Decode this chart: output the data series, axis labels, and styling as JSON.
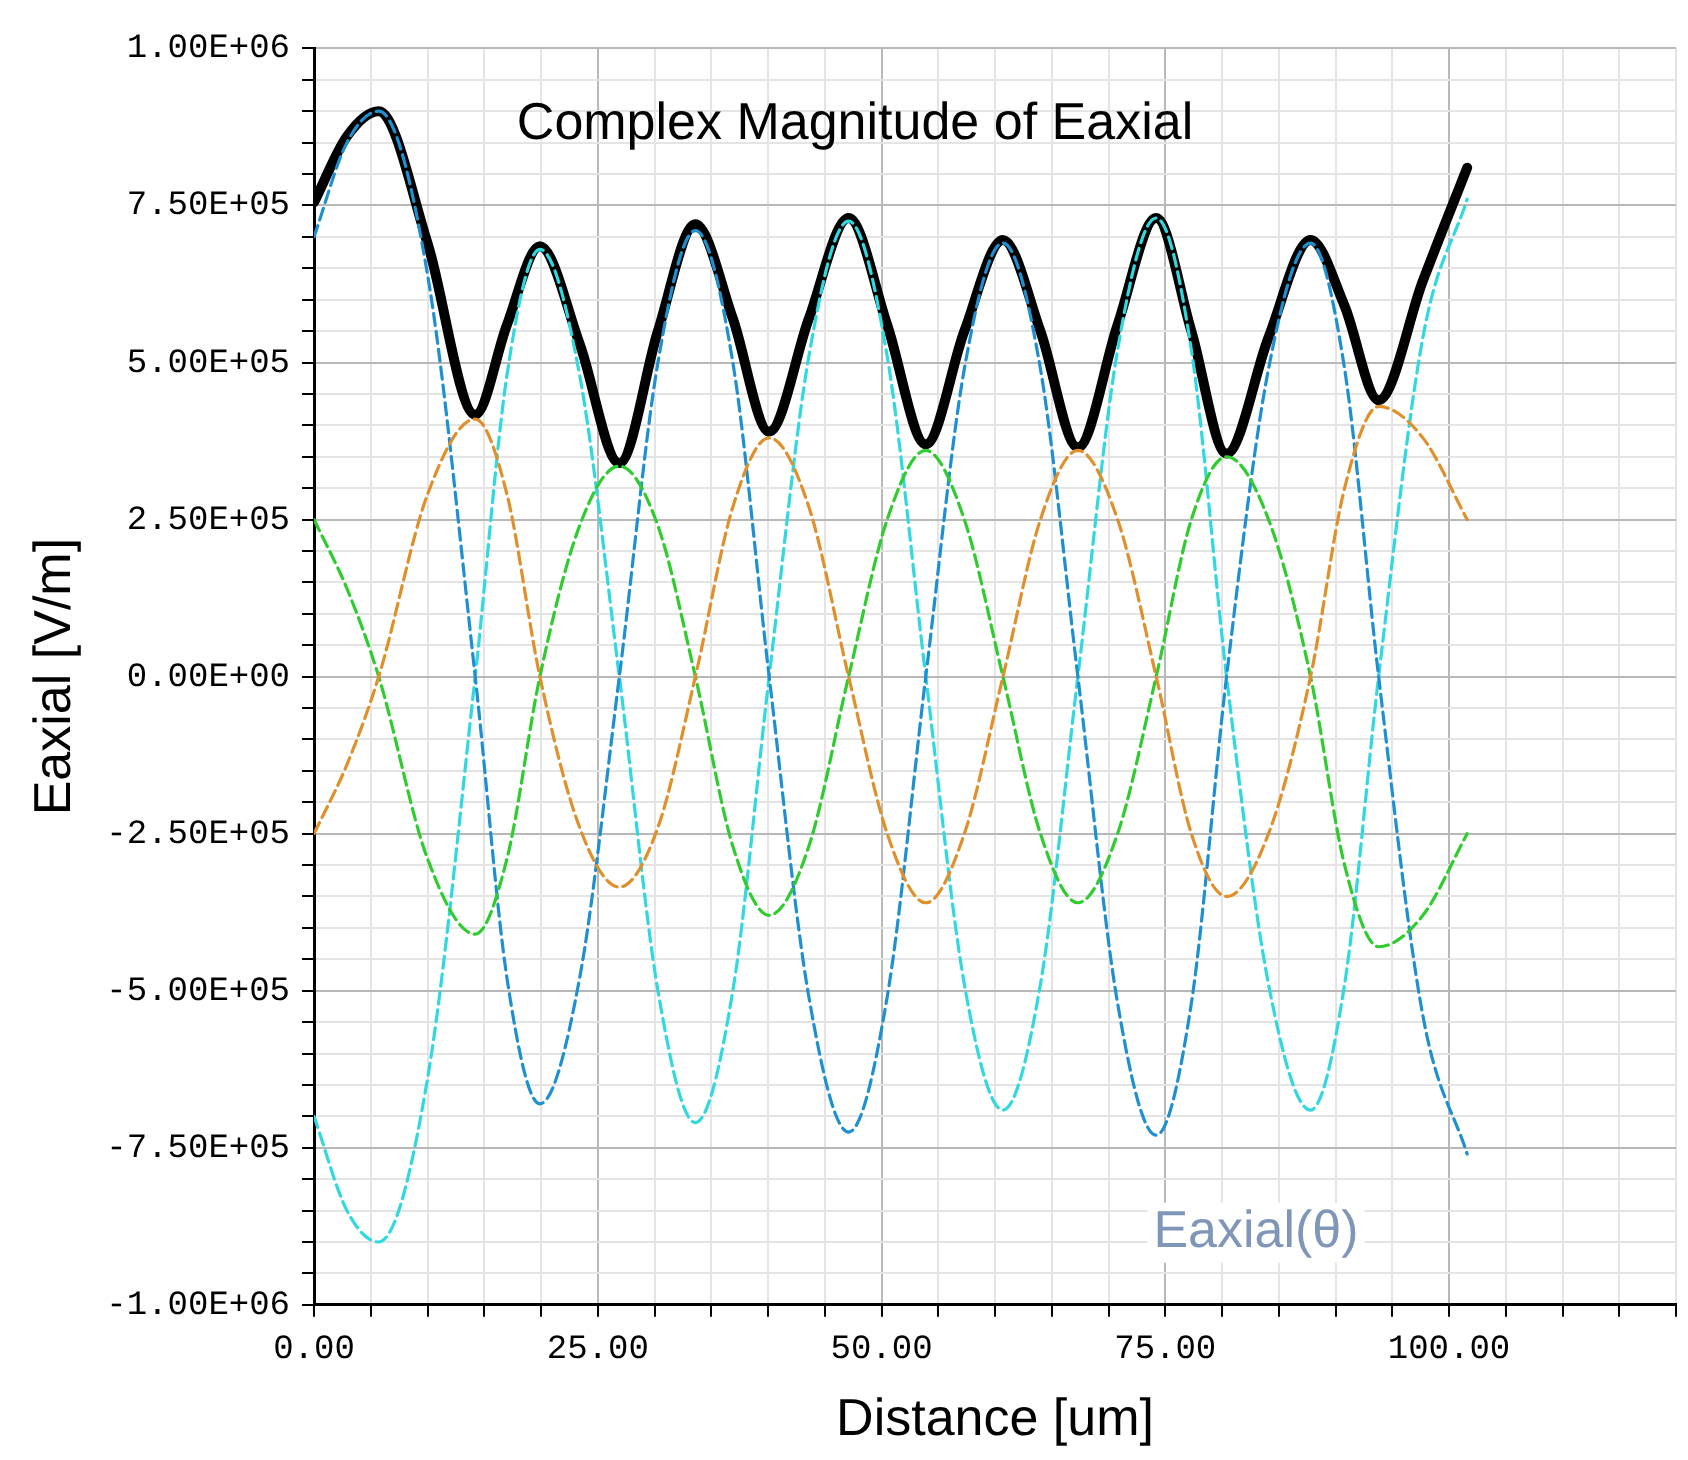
{
  "chart_data": {
    "type": "line",
    "xlabel": "Distance [um]",
    "ylabel": "Eaxial [V/m]",
    "annotations": [
      "Complex Magnitude of Eaxial",
      "Eaxial(θ)"
    ],
    "x": [
      0,
      2.9,
      5.7,
      10,
      14.2,
      17,
      19.9,
      23.4,
      26.9,
      30.3,
      33.6,
      36.9,
      40.1,
      43.6,
      47.1,
      50.5,
      53.9,
      57.3,
      60.7,
      64,
      67.3,
      70.8,
      74.2,
      77.3,
      80.4,
      84.1,
      87.8,
      90.8,
      93.8,
      97.7,
      101.6
    ],
    "series": [
      {
        "color": "#e0902a",
        "line_style": "dashed",
        "values": [
          -250000,
          -140000,
          0,
          290000,
          410000,
          290000,
          0,
          -240000,
          -335000,
          -240000,
          0,
          270000,
          380000,
          270000,
          0,
          -250000,
          -360000,
          -250000,
          0,
          250000,
          360000,
          250000,
          0,
          -250000,
          -350000,
          -250000,
          0,
          300000,
          430000,
          380000,
          250000
        ]
      },
      {
        "color": "#2ecc2e",
        "line_style": "dashed",
        "values": [
          250000,
          140000,
          0,
          -290000,
          -410000,
          -290000,
          0,
          240000,
          335000,
          240000,
          0,
          -270000,
          -380000,
          -270000,
          0,
          250000,
          360000,
          250000,
          0,
          -250000,
          -360000,
          -250000,
          0,
          250000,
          350000,
          250000,
          0,
          -300000,
          -430000,
          -380000,
          -250000
        ]
      },
      {
        "color": "#1e90d0",
        "line_style": "dashed",
        "values": [
          700000,
          850000,
          900000,
          640000,
          0,
          -480000,
          -680000,
          -480000,
          0,
          500000,
          710000,
          500000,
          0,
          -510000,
          -725000,
          -510000,
          0,
          490000,
          690000,
          490000,
          0,
          -520000,
          -730000,
          -520000,
          0,
          490000,
          690000,
          490000,
          0,
          -540000,
          -760000
        ]
      },
      {
        "color": "#30d8e0",
        "line_style": "dashed",
        "values": [
          -700000,
          -850000,
          -900000,
          -640000,
          0,
          480000,
          680000,
          480000,
          0,
          -500000,
          -710000,
          -500000,
          0,
          510000,
          725000,
          510000,
          0,
          -490000,
          -690000,
          -490000,
          0,
          520000,
          730000,
          520000,
          0,
          -490000,
          -690000,
          -490000,
          0,
          540000,
          760000
        ]
      },
      {
        "color": "#000000",
        "line_style": "solid",
        "values": [
          755000,
          860000,
          900000,
          690000,
          417000,
          560000,
          685000,
          530000,
          340000,
          550000,
          720000,
          570000,
          390000,
          570000,
          730000,
          560000,
          370000,
          550000,
          695000,
          550000,
          365000,
          560000,
          730000,
          550000,
          355000,
          540000,
          695000,
          590000,
          440000,
          630000,
          810000
        ]
      }
    ],
    "xlim": [
      0,
      120
    ],
    "xticks": [
      {
        "value": 0,
        "label": "0.00"
      },
      {
        "value": 5,
        "label": null
      },
      {
        "value": 10,
        "label": null
      },
      {
        "value": 15,
        "label": null
      },
      {
        "value": 20,
        "label": null
      },
      {
        "value": 25,
        "label": "25.00"
      },
      {
        "value": 30,
        "label": null
      },
      {
        "value": 35,
        "label": null
      },
      {
        "value": 40,
        "label": null
      },
      {
        "value": 45,
        "label": null
      },
      {
        "value": 50,
        "label": "50.00"
      },
      {
        "value": 55,
        "label": null
      },
      {
        "value": 60,
        "label": null
      },
      {
        "value": 65,
        "label": null
      },
      {
        "value": 70,
        "label": null
      },
      {
        "value": 75,
        "label": "75.00"
      },
      {
        "value": 80,
        "label": null
      },
      {
        "value": 85,
        "label": null
      },
      {
        "value": 90,
        "label": null
      },
      {
        "value": 95,
        "label": null
      },
      {
        "value": 100,
        "label": "100.00"
      },
      {
        "value": 105,
        "label": null
      },
      {
        "value": 110,
        "label": null
      },
      {
        "value": 115,
        "label": null
      },
      {
        "value": 120,
        "label": null
      }
    ],
    "ylim": [
      -1000000,
      1000000
    ],
    "yticks": [
      {
        "value": -1000000,
        "label": "-1.00E+06"
      },
      {
        "value": -950000,
        "label": null
      },
      {
        "value": -900000,
        "label": null
      },
      {
        "value": -850000,
        "label": null
      },
      {
        "value": -800000,
        "label": null
      },
      {
        "value": -750000,
        "label": "-7.50E+05"
      },
      {
        "value": -700000,
        "label": null
      },
      {
        "value": -650000,
        "label": null
      },
      {
        "value": -600000,
        "label": null
      },
      {
        "value": -550000,
        "label": null
      },
      {
        "value": -500000,
        "label": "-5.00E+05"
      },
      {
        "value": -450000,
        "label": null
      },
      {
        "value": -400000,
        "label": null
      },
      {
        "value": -350000,
        "label": null
      },
      {
        "value": -300000,
        "label": null
      },
      {
        "value": -250000,
        "label": "-2.50E+05"
      },
      {
        "value": -200000,
        "label": null
      },
      {
        "value": -150000,
        "label": null
      },
      {
        "value": -100000,
        "label": null
      },
      {
        "value": -50000,
        "label": null
      },
      {
        "value": 0,
        "label": "0.00E+00"
      },
      {
        "value": 50000,
        "label": null
      },
      {
        "value": 100000,
        "label": null
      },
      {
        "value": 150000,
        "label": null
      },
      {
        "value": 200000,
        "label": null
      },
      {
        "value": 250000,
        "label": "2.50E+05"
      },
      {
        "value": 300000,
        "label": null
      },
      {
        "value": 350000,
        "label": null
      },
      {
        "value": 400000,
        "label": null
      },
      {
        "value": 450000,
        "label": null
      },
      {
        "value": 500000,
        "label": "5.00E+05"
      },
      {
        "value": 550000,
        "label": null
      },
      {
        "value": 600000,
        "label": null
      },
      {
        "value": 650000,
        "label": null
      },
      {
        "value": 700000,
        "label": null
      },
      {
        "value": 750000,
        "label": "7.50E+05"
      },
      {
        "value": 800000,
        "label": null
      },
      {
        "value": 850000,
        "label": null
      },
      {
        "value": 900000,
        "label": null
      },
      {
        "value": 950000,
        "label": null
      },
      {
        "value": 1000000,
        "label": "1.00E+06"
      }
    ],
    "grid": true,
    "legend": false,
    "marker": "none"
  }
}
